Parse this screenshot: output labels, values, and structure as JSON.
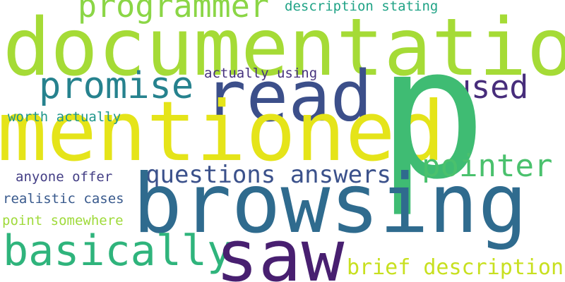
{
  "words": {
    "documentation": {
      "text": "documentation",
      "color": "#a5db36"
    },
    "p": {
      "text": "p",
      "color": "#3fbc73"
    },
    "mentioned": {
      "text": "mentioned",
      "color": "#e5e419"
    },
    "browsing": {
      "text": "browsing",
      "color": "#2f6b8e"
    },
    "saw": {
      "text": "saw",
      "color": "#481f70"
    },
    "read": {
      "text": "read",
      "color": "#3c4f8a"
    },
    "programmer": {
      "text": "programmer",
      "color": "#8bd646"
    },
    "promise": {
      "text": "promise",
      "color": "#26828e"
    },
    "basically": {
      "text": "basically",
      "color": "#2fb47c"
    },
    "pointer": {
      "text": "pointer",
      "color": "#4ac16d"
    },
    "used": {
      "text": "used",
      "color": "#472d7b"
    },
    "questions_answers": {
      "text": "questions answers",
      "color": "#3b518b"
    },
    "brief_description": {
      "text": "brief description",
      "color": "#c8e020"
    },
    "description_stating": {
      "text": "description stating",
      "color": "#20a386"
    },
    "actually_using": {
      "text": "actually using",
      "color": "#46327e"
    },
    "worth_actually": {
      "text": "worth actually",
      "color": "#1f968b"
    },
    "anyone_offer": {
      "text": "anyone offer",
      "color": "#433e85"
    },
    "realistic_cases": {
      "text": "realistic cases",
      "color": "#38598c"
    },
    "point_somewhere": {
      "text": "point somewhere",
      "color": "#9fda3a"
    }
  }
}
